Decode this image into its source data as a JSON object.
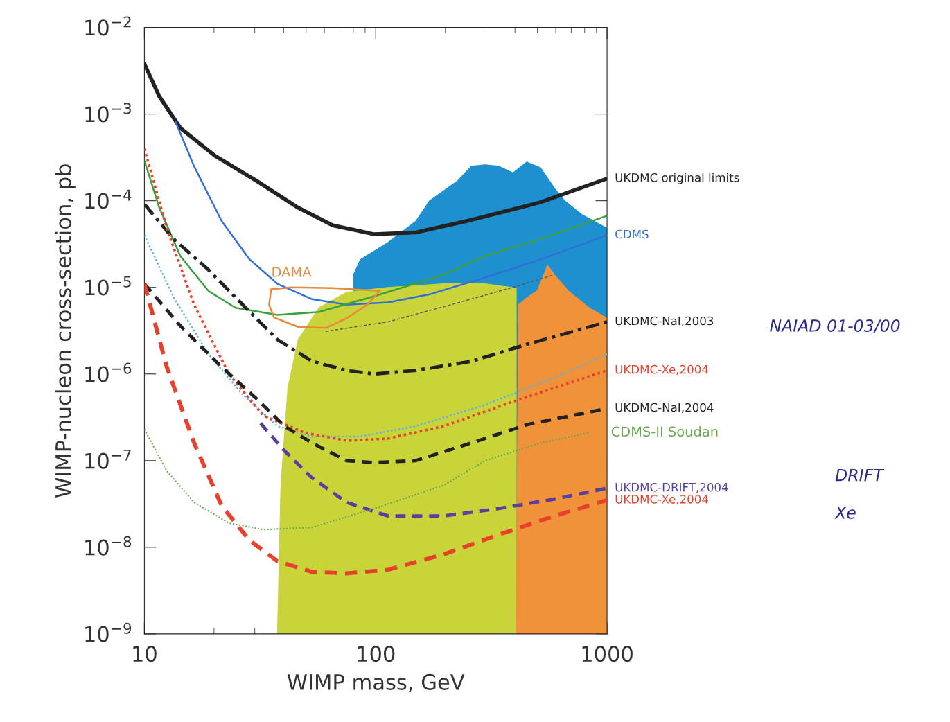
{
  "chart_data": {
    "type": "line",
    "xlabel": "WIMP mass, GeV",
    "ylabel": "WIMP-nucleon cross-section, pb",
    "log": "xy",
    "xlim": [
      10,
      1000
    ],
    "xticks": [
      10,
      100,
      1000
    ],
    "ylim": [
      1e-09,
      0.01
    ],
    "yticks": [
      {
        "value": 1e-09,
        "label": "10$^{−9}$"
      },
      {
        "value": 1e-08,
        "label": "10$^{−8}$"
      },
      {
        "value": 1e-07,
        "label": "10$^{−7}$"
      },
      {
        "value": 1e-06,
        "label": "10$^{−6}$"
      },
      {
        "value": 1e-05,
        "label": "10$^{−5}$"
      },
      {
        "value": 0.0001,
        "label": "10$^{−4}$"
      },
      {
        "value": 0.001,
        "label": "10$^{−3}$"
      },
      {
        "value": 0.01,
        "label": "10$^{−2}$"
      }
    ],
    "grid": false,
    "legend": false,
    "series": [
      {
        "type": "area",
        "color": "#1e90d0",
        "x": [
          80.1,
          85.9,
          113,
          149,
          171,
          226,
          259,
          297,
          341,
          392,
          450,
          516,
          592,
          656,
          780,
          1000
        ],
        "values": [
          1.4e-05,
          2.1e-05,
          3.3e-05,
          5.8e-05,
          0.0001,
          0.00017,
          0.00025,
          0.00026,
          0.00025,
          0.00021,
          0.00028,
          0.00024,
          0.00014,
          0.0001,
          6.9e-05,
          4.8e-05
        ]
      },
      {
        "type": "area",
        "color": "#c8d43a",
        "x": [
          37.6,
          38.9,
          41.7,
          46.2,
          56.8,
          74.8,
          113,
          197,
          297,
          405
        ],
        "values": [
          1e-09,
          5.2e-08,
          6.9e-07,
          2.5e-06,
          5.8e-06,
          8.8e-06,
          1e-05,
          1.1e-05,
          1.1e-05,
          9.8e-06
        ]
      },
      {
        "type": "area",
        "color": "#f0923a",
        "x": [
          405,
          414,
          450,
          499,
          553,
          592,
          680,
          836,
          1000
        ],
        "values": [
          1e-09,
          6.3e-06,
          7.6e-06,
          9.1e-06,
          1.8e-05,
          1.4e-05,
          9.1e-06,
          5.8e-06,
          4.4e-06
        ]
      },
      {
        "name": "UKDMC original limits",
        "color": "#222222",
        "line_style": "solid",
        "x": [
          10,
          11.6,
          14.3,
          20.2,
          30.5,
          46.2,
          65.2,
          98.6,
          149,
          259,
          516,
          1000
        ],
        "values": [
          0.0038,
          0.0016,
          0.00069,
          0.00033,
          0.00017,
          8.3e-05,
          5.2e-05,
          4.1e-05,
          4.3e-05,
          6e-05,
          9.6e-05,
          0.00018
        ]
      },
      {
        "name": "CDMS",
        "color": "#2f6fd6",
        "line_style": "solid",
        "x": [
          13.6,
          16.4,
          21.6,
          28.5,
          37.6,
          53.1,
          74.8,
          113,
          171,
          297,
          516,
          1000
        ],
        "values": [
          0.00083,
          0.00025,
          5.8e-05,
          2.1e-05,
          1.1e-05,
          7.3e-06,
          6.3e-06,
          6.7e-06,
          8.3e-06,
          1.3e-05,
          2.1e-05,
          4e-05
        ]
      },
      {
        "color": "#3aa040",
        "line_style": "solid",
        "x": [
          10,
          11.6,
          14.3,
          18.9,
          24.8,
          37.6,
          56.8,
          98.6,
          197,
          297,
          516,
          1000
        ],
        "values": [
          0.00029,
          8.3e-05,
          2.3e-05,
          9.1e-06,
          5.8e-06,
          4.8e-06,
          5.2e-06,
          7.9e-06,
          1.4e-05,
          2.3e-05,
          3.6e-05,
          6.7e-05
        ]
      },
      {
        "name": "DAMA",
        "color": "#e8883a",
        "line_style": "solid",
        "x": [
          34.6,
          35.3,
          43.2,
          65.2,
          104
        ],
        "values": [
          6.3e-06,
          9.5e-06,
          1e-05,
          9.8e-06,
          9.1e-06
        ]
      },
      {
        "color": "#e8883a",
        "line_style": "solid",
        "x": [
          34.6,
          36.3,
          46.2,
          60.8,
          74.8,
          92.0,
          104
        ],
        "values": [
          6.3e-06,
          4.5e-06,
          3.5e-06,
          3.4e-06,
          4.4e-06,
          6.3e-06,
          9.1e-06
        ]
      },
      {
        "color": "#555555",
        "line_style": "dashed",
        "x": [
          60.8,
          113,
          211,
          392,
          592
        ],
        "values": [
          3.1e-06,
          4e-06,
          6.3e-06,
          1e-05,
          1.4e-05
        ]
      },
      {
        "name": "UKDMC-NaI,2003",
        "color": "#222222",
        "line_style": "dashdot",
        "x": [
          10,
          13.4,
          18.9,
          26.6,
          37.6,
          53.1,
          74.8,
          98.6,
          149,
          259,
          450,
          1000
        ],
        "values": [
          9.1e-05,
          3.6e-05,
          1.6e-05,
          6.3e-06,
          2.5e-06,
          1.4e-06,
          1.1e-06,
          1e-06,
          1.1e-06,
          1.4e-06,
          2.2e-06,
          4e-06
        ]
      },
      {
        "color": "#5ab4e0",
        "line_style": "dotted",
        "x": [
          10,
          13.4,
          18.9,
          26.6,
          37.6,
          53.1,
          85.9,
          149,
          297,
          592,
          1000
        ],
        "values": [
          4e-05,
          7.6e-06,
          1.7e-06,
          5.8e-07,
          2.5e-07,
          1.9e-07,
          1.9e-07,
          2.5e-07,
          4.4e-07,
          9.1e-07,
          1.7e-06
        ]
      },
      {
        "name": "UKDMC-Xe,2004",
        "color": "#e8402a",
        "line_style": "dotted",
        "x": [
          10,
          12.5,
          16.4,
          23.2,
          32.7,
          49.5,
          74.8,
          113,
          197,
          392,
          1000
        ],
        "values": [
          0.0004,
          4.8e-05,
          6.3e-06,
          1e-06,
          3.3e-07,
          2.1e-07,
          1.7e-07,
          1.8e-07,
          2.5e-07,
          4.8e-07,
          1.1e-06
        ]
      },
      {
        "name": "UKDMC-NaI,2004",
        "color": "#222222",
        "line_style": "dashed",
        "x": [
          10,
          14.3,
          21.6,
          30.5,
          40.3,
          53.1,
          74.8,
          98.6,
          149,
          259,
          450,
          1000
        ],
        "values": [
          1.1e-05,
          3.6e-06,
          1.2e-06,
          5.2e-07,
          2.5e-07,
          1.6e-07,
          1e-07,
          9.5e-08,
          1e-07,
          1.6e-07,
          2.6e-07,
          4e-07
        ]
      },
      {
        "name": "UKDMC-DRIFT,2004",
        "color": "#5a3fa0",
        "line_style": "dashed",
        "x": [
          31.8,
          40.3,
          53.1,
          74.8,
          113,
          197,
          341,
          592,
          1000
        ],
        "values": [
          2.7e-07,
          1.3e-07,
          6.3e-08,
          3.3e-08,
          2.3e-08,
          2.3e-08,
          2.8e-08,
          3.6e-08,
          4.8e-08
        ]
      },
      {
        "name": "CDMS-II Soudan",
        "color": "#6aa84f",
        "line_style": "dotted",
        "x": [
          10,
          12.5,
          16.4,
          23.2,
          32.7,
          53.1,
          98.6,
          197,
          297,
          516,
          836
        ],
        "values": [
          2.3e-07,
          7.6e-08,
          3.3e-08,
          1.9e-08,
          1.6e-08,
          1.7e-08,
          2.8e-08,
          5.2e-08,
          1e-07,
          1.6e-07,
          2.1e-07
        ]
      },
      {
        "name": "UKDMC-Xe,2004",
        "color": "#e8402a",
        "line_style": "dashed",
        "x": [
          10,
          12.5,
          16.4,
          21.6,
          28.5,
          37.6,
          53.1,
          74.8,
          113,
          197,
          341,
          592,
          1000
        ],
        "values": [
          1.1e-05,
          1.2e-06,
          1.6e-07,
          3e-08,
          1.2e-08,
          6.9e-09,
          5.2e-09,
          5e-09,
          5.5e-09,
          8.3e-09,
          1.4e-08,
          2.3e-08,
          3.5e-08
        ]
      }
    ],
    "annotations": [
      "NAIAD 01-03/00",
      "DRIFT",
      "Xe"
    ]
  }
}
